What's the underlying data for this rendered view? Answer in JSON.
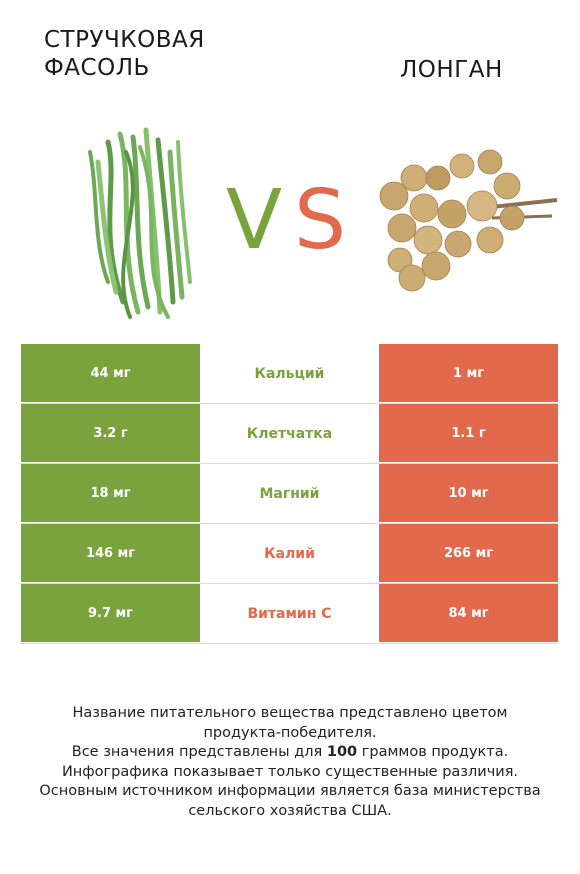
{
  "left_food": {
    "name_line1": "СТРУЧКОВАЯ",
    "name_line2": "ФАСОЛЬ",
    "icon": "green-beans-image"
  },
  "right_food": {
    "name": "ЛОНГАН",
    "icon": "longan-image"
  },
  "vs": {
    "v": "V",
    "s": "S"
  },
  "colors": {
    "left": "#7aa23d",
    "right": "#e2694b"
  },
  "rows": [
    {
      "left": "44 мг",
      "nutrient": "Кальций",
      "right": "1 мг",
      "winner": "left"
    },
    {
      "left": "3.2 г",
      "nutrient": "Клетчатка",
      "right": "1.1 г",
      "winner": "left"
    },
    {
      "left": "18 мг",
      "nutrient": "Магний",
      "right": "10 мг",
      "winner": "left"
    },
    {
      "left": "146 мг",
      "nutrient": "Калий",
      "right": "266 мг",
      "winner": "right"
    },
    {
      "left": "9.7 мг",
      "nutrient": "Витамин C",
      "right": "84 мг",
      "winner": "right"
    }
  ],
  "footer": {
    "line1": "Название питательного вещества представлено цветом",
    "line2": "продукта-победителя.",
    "line3a": "Все значения представлены для ",
    "line3b": "100",
    "line3c": " граммов продукта.",
    "line4": "Инфографика показывает только существенные различия.",
    "line5": "Основным источником информации является база министерства",
    "line6": "сельского хозяйства США."
  }
}
